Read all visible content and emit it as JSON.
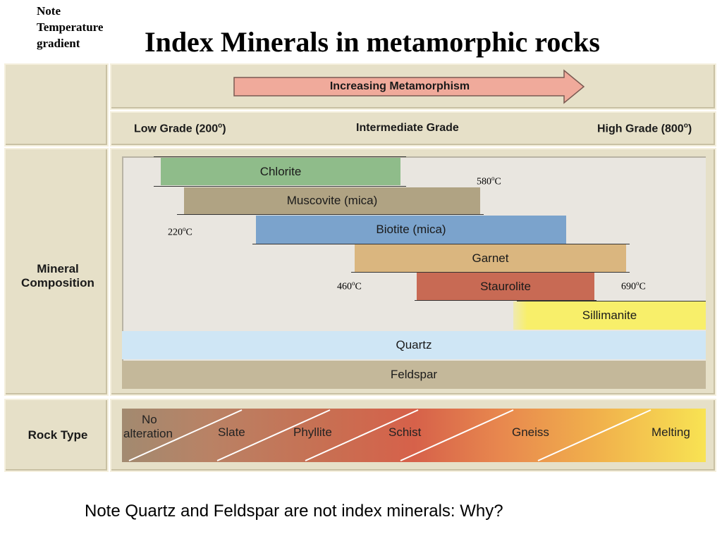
{
  "note": {
    "line1": "Note",
    "line2": "Temperature",
    "line3": "gradient"
  },
  "title": "Index Minerals in metamorphic rocks",
  "arrow_label": "Increasing Metamorphism",
  "grades": {
    "low": "Low Grade (200",
    "intermediate": "Intermediate Grade",
    "high": "High Grade (800",
    "deg": "o",
    "close": ")"
  },
  "row_labels": {
    "mineral_1": "Mineral",
    "mineral_2": "Composition",
    "rock": "Rock Type"
  },
  "minerals": {
    "chlorite": "Chlorite",
    "muscovite": "Muscovite (mica)",
    "biotite": "Biotite (mica)",
    "garnet": "Garnet",
    "staurolite": "Staurolite",
    "sillimanite": "Sillimanite",
    "quartz": "Quartz",
    "feldspar": "Feldspar"
  },
  "temperatures": {
    "t580": "580",
    "t220": "220",
    "t460": "460",
    "t690": "690",
    "sup": "o",
    "unit": "C"
  },
  "rock_types": {
    "no_alteration_1": "No",
    "no_alteration_2": "alteration",
    "slate": "Slate",
    "phyllite": "Phyllite",
    "schist": "Schist",
    "gneiss": "Gneiss",
    "melting": "Melting"
  },
  "colors": {
    "chlorite": "#8fbc8a",
    "muscovite": "#b0a383",
    "biotite": "#7ba3cc",
    "garnet": "#dab67f",
    "staurolite": "#c86a54",
    "sillimanite": "#f8ef6a",
    "quartz": "#cfe6f5",
    "feldspar": "#c4b89a",
    "arrow": "#f0aa9b"
  },
  "footer": "Note Quartz and Feldspar are not index minerals: Why?"
}
